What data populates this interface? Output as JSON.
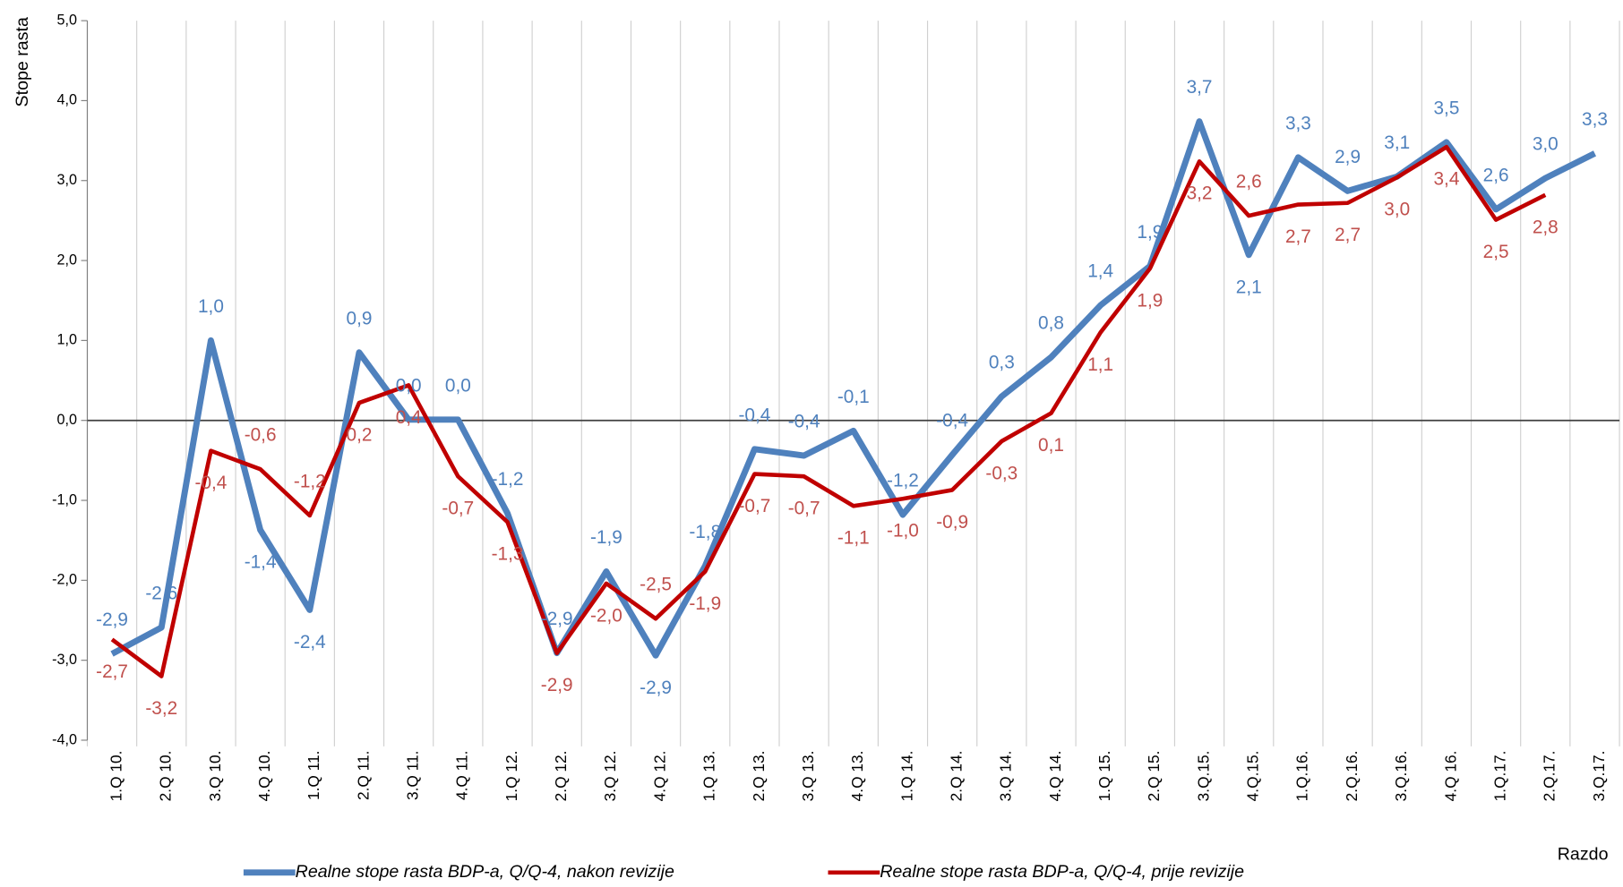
{
  "chart_data": {
    "type": "line",
    "y_label": "Stope rasta",
    "x_label": "Razdo",
    "categories": [
      "1.Q 10.",
      "2.Q 10.",
      "3.Q 10.",
      "4.Q 10.",
      "1.Q 11.",
      "2.Q 11.",
      "3.Q 11.",
      "4.Q 11.",
      "1.Q 12.",
      "2.Q 12.",
      "3.Q 12.",
      "4.Q 12.",
      "1.Q 13.",
      "2.Q 13.",
      "3.Q 13.",
      "4.Q 13.",
      "1.Q 14.",
      "2.Q 14.",
      "3.Q 14.",
      "4.Q 14.",
      "1.Q 15.",
      "2.Q 15.",
      "3.Q.15.",
      "4.Q.15.",
      "1.Q.16.",
      "2.Q.16.",
      "3.Q.16.",
      "4.Q 16.",
      "1.Q.17.",
      "2.Q.17.",
      "3.Q.17."
    ],
    "series": [
      {
        "name": "Realne stope rasta BDP-a, Q/Q-4, nakon revizije",
        "color": "#4f81bd",
        "values": [
          -2.92,
          -2.59,
          1.0,
          -1.37,
          -2.37,
          0.85,
          0.01,
          0.01,
          -1.16,
          -2.91,
          -1.89,
          -2.94,
          -1.82,
          -0.36,
          -0.44,
          -0.13,
          -1.18,
          -0.43,
          0.3,
          0.79,
          1.44,
          1.93,
          3.74,
          2.07,
          3.29,
          2.87,
          3.05,
          3.48,
          2.64,
          3.03,
          3.34
        ],
        "value_labels": [
          "-2,9",
          "-2,6",
          "1,0",
          "-1,4",
          "-2,4",
          "0,9",
          "0,0",
          "0,0",
          "-1,2",
          "-2,9",
          "-1,9",
          "-2,9",
          "-1,8",
          "-0,4",
          "-0,4",
          "-0,1",
          "-1,2",
          "-0,4",
          "0,3",
          "0,8",
          "1,4",
          "1,9",
          "3,7",
          "2,1",
          "3,3",
          "2,9",
          "3,1",
          "3,5",
          "2,6",
          "3,0",
          "3,3"
        ]
      },
      {
        "name": "Realne stope rasta BDP-a, Q/Q-4, prije revizije",
        "color": "#c00000",
        "values": [
          -2.74,
          -3.2,
          -0.38,
          -0.61,
          -1.19,
          0.22,
          0.44,
          -0.7,
          -1.27,
          -2.91,
          -2.04,
          -2.48,
          -1.89,
          -0.67,
          -0.7,
          -1.07,
          -0.98,
          -0.87,
          -0.26,
          0.09,
          1.1,
          1.9,
          3.24,
          2.56,
          2.7,
          2.72,
          3.04,
          3.42,
          2.51,
          2.82,
          null
        ],
        "value_labels": [
          "-2,7",
          "-3,2",
          "-0,4",
          "-0,6",
          "-1,2",
          "0,2",
          "0,4",
          "-0,7",
          "-1,3",
          "-2,9",
          "-2,0",
          "-2,5",
          "-1,9",
          "-0,7",
          "-0,7",
          "-1,1",
          "-1,0",
          "-0,9",
          "-0,3",
          "0,1",
          "1,1",
          "1,9",
          "3,2",
          "2,6",
          "2,7",
          "2,7",
          "3,0",
          "3,4",
          "2,5",
          "2,8",
          null
        ]
      }
    ],
    "ylim": [
      -4,
      5
    ],
    "yticks": [
      {
        "value": -4,
        "label": "-4,0"
      },
      {
        "value": -3,
        "label": "-3,0"
      },
      {
        "value": -2,
        "label": "-2,0"
      },
      {
        "value": -1,
        "label": "-1,0"
      },
      {
        "value": 0,
        "label": "0,0"
      },
      {
        "value": 1,
        "label": "1,0"
      },
      {
        "value": 2,
        "label": "2,0"
      },
      {
        "value": 3,
        "label": "3,0"
      },
      {
        "value": 4,
        "label": "4,0"
      },
      {
        "value": 5,
        "label": "5,0"
      }
    ],
    "grid": true,
    "legend": "bottom"
  }
}
